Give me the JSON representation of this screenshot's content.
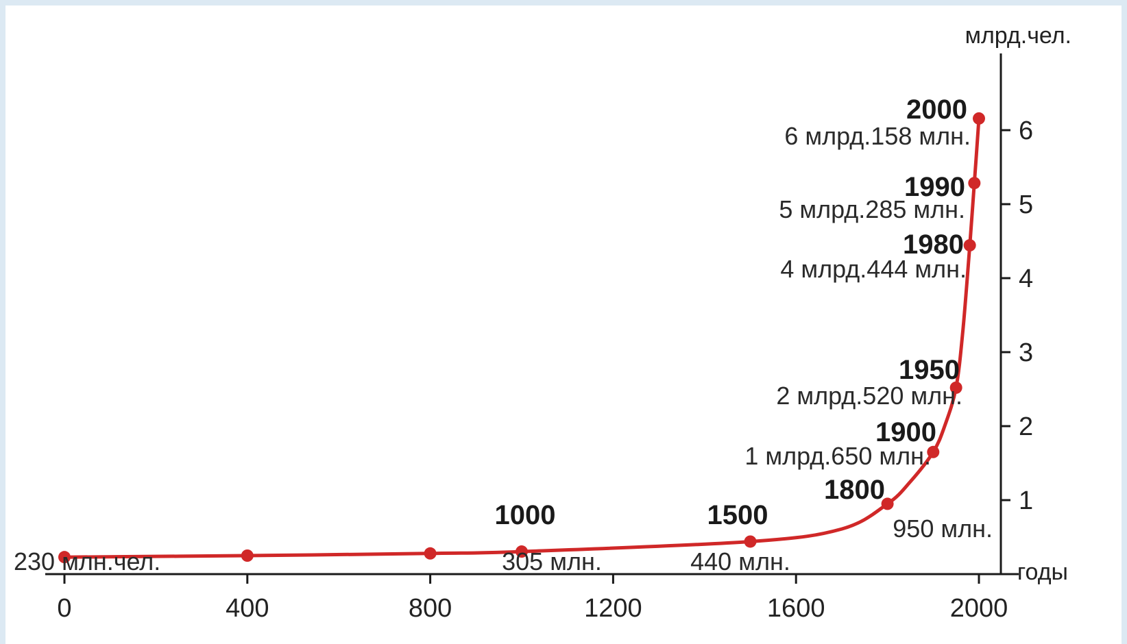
{
  "chart_data": {
    "type": "line",
    "xlabel": "годы",
    "ylabel": "млрд.чел.",
    "xlim": [
      0,
      2000
    ],
    "ylim": [
      0,
      6.5
    ],
    "x_ticks": [
      0,
      400,
      800,
      1200,
      1600,
      2000
    ],
    "y_ticks": [
      1,
      2,
      3,
      4,
      5,
      6
    ],
    "grid": false,
    "line_color": "#d02828",
    "series": [
      {
        "x": [
          0,
          400,
          800,
          1000,
          1500,
          1700,
          1800,
          1850,
          1900,
          1925,
          1950,
          1965,
          1980,
          1990,
          2000
        ],
        "y": [
          0.23,
          0.25,
          0.28,
          0.305,
          0.44,
          0.61,
          0.95,
          1.25,
          1.65,
          2.0,
          2.52,
          3.3,
          4.444,
          5.285,
          6.158
        ]
      }
    ],
    "points": [
      {
        "x": 0,
        "y": 0.23
      },
      {
        "x": 400,
        "y": 0.25
      },
      {
        "x": 800,
        "y": 0.28
      },
      {
        "x": 1000,
        "y": 0.305
      },
      {
        "x": 1500,
        "y": 0.44
      },
      {
        "x": 1800,
        "y": 0.95
      },
      {
        "x": 1900,
        "y": 1.65
      },
      {
        "x": 1950,
        "y": 2.52
      },
      {
        "x": 1980,
        "y": 4.444
      },
      {
        "x": 1990,
        "y": 5.285
      },
      {
        "x": 2000,
        "y": 6.158
      }
    ],
    "annotations": {
      "start_value": "230 млн.чел.",
      "y1000": "1000",
      "v1000": "305 млн.",
      "y1500": "1500",
      "v1500": "440 млн.",
      "y1800": "1800",
      "v1800": "950 млн.",
      "y1900": "1900",
      "v1900": "1 млрд.650 млн.",
      "y1950": "1950",
      "v1950": "2 млрд.520 млн.",
      "y1980": "1980",
      "v1980": "4 млрд.444 млн.",
      "y1990": "1990",
      "v1990": "5 млрд.285 млн.",
      "y2000": "2000",
      "v2000": "6 млрд.158 млн."
    }
  }
}
